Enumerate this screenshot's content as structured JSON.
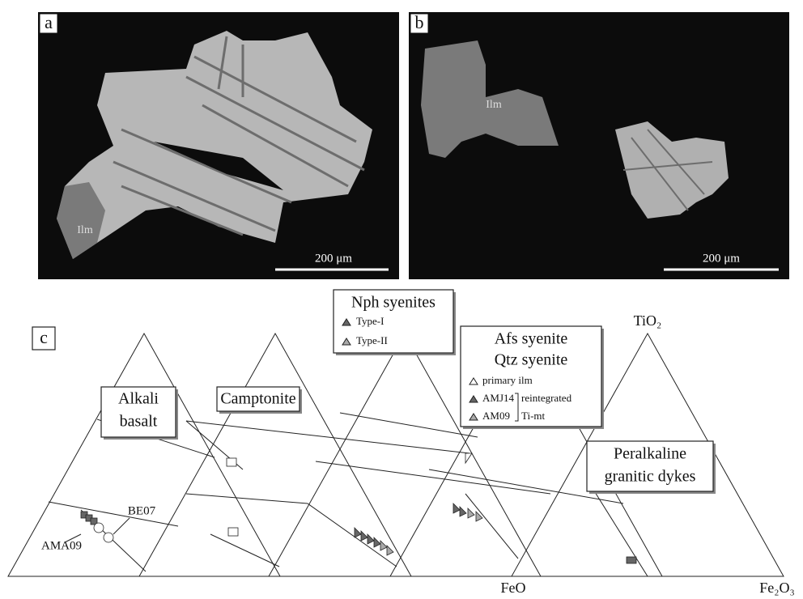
{
  "panels": {
    "a": {
      "label": "a",
      "mineral_label": "Ilm",
      "scale_bar": "200 μm"
    },
    "b": {
      "label": "b",
      "mineral_label": "Ilm",
      "scale_bar": "200 μm"
    },
    "c": {
      "label": "c"
    }
  },
  "legends": {
    "alkali_basalt": [
      "Alkali",
      "basalt"
    ],
    "camptonite": "Camptonite",
    "nph_syenites": {
      "title": "Nph syenites",
      "items": [
        "Type-I",
        "Type-II"
      ]
    },
    "afs_qtz": {
      "title": [
        "Afs syenite",
        "Qtz syenite"
      ],
      "items": [
        "primary ilm",
        "AMJ14",
        "AM09"
      ],
      "bracket": [
        "reintegrated",
        "Ti-mt"
      ]
    },
    "peralkaline": [
      "Peralkaline",
      "granitic dykes"
    ]
  },
  "sample_labels": [
    "BE07",
    "AMA09"
  ],
  "axes": {
    "apex": "TiO₂",
    "left": "FeO",
    "right": "Fe₂O₃"
  }
}
